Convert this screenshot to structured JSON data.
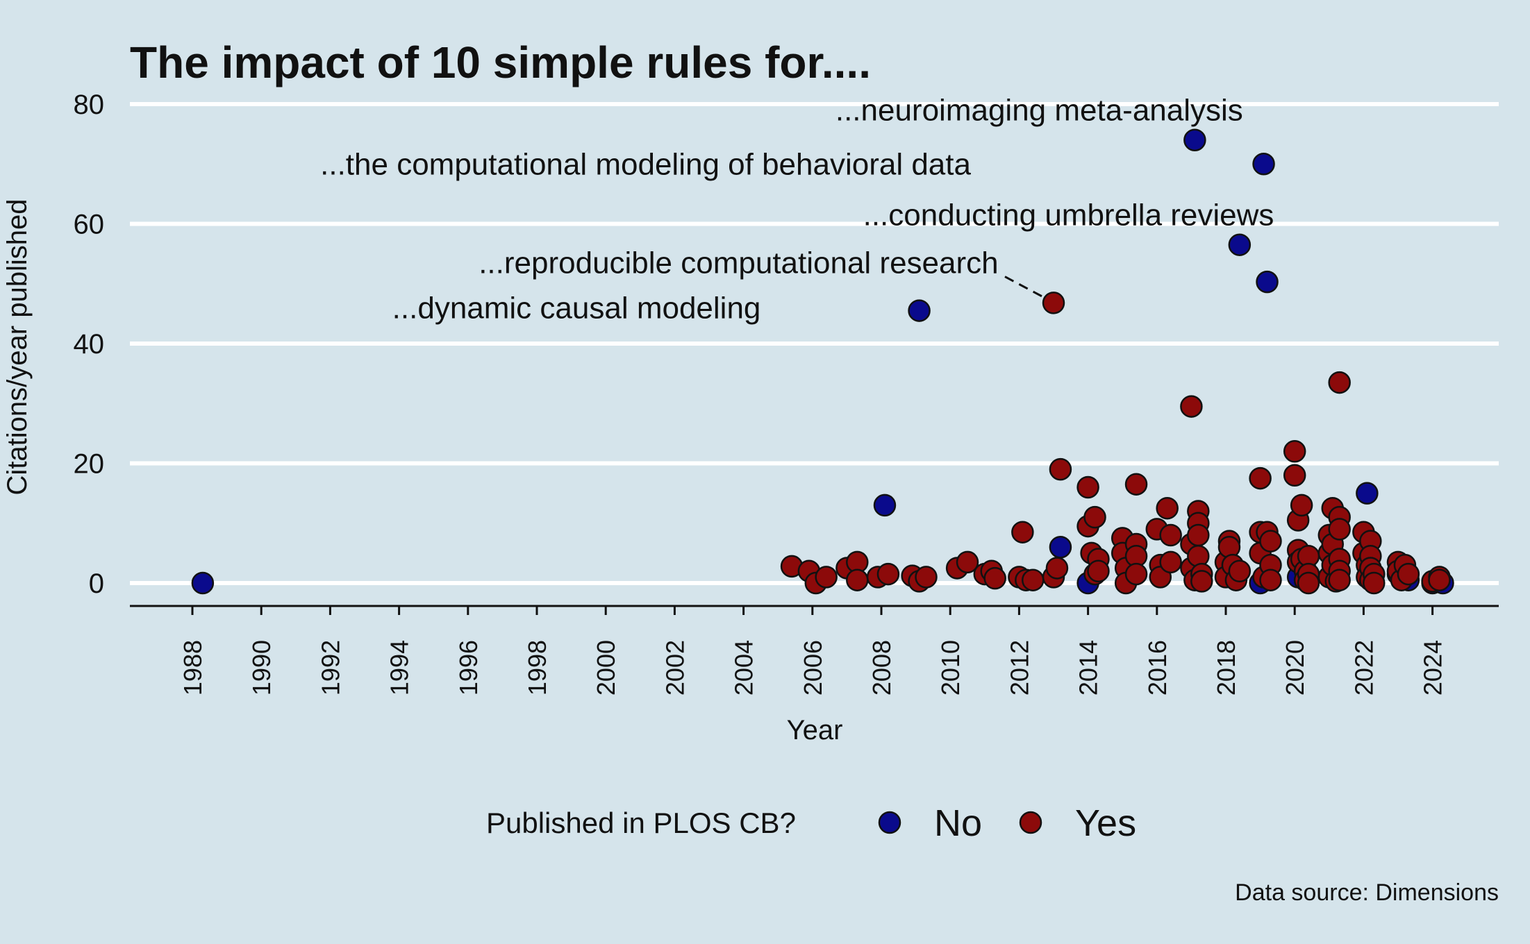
{
  "chart_data": {
    "type": "scatter",
    "title": "The impact of 10 simple rules for....",
    "xlabel": "Year",
    "ylabel": "Citations/year published",
    "caption": "Data source: Dimensions",
    "xlim": [
      1987,
      2026
    ],
    "ylim": [
      -4,
      82
    ],
    "x_ticks": [
      "1988",
      "1990",
      "1992",
      "1994",
      "1996",
      "1998",
      "2000",
      "2002",
      "2004",
      "2006",
      "2008",
      "2010",
      "2012",
      "2014",
      "2016",
      "2018",
      "2020",
      "2022",
      "2024"
    ],
    "y_ticks": [
      "0",
      "20",
      "40",
      "60",
      "80"
    ],
    "grid": "horizontal",
    "legend": {
      "title": "Published in PLOS CB?",
      "position": "bottom",
      "entries": [
        {
          "label": "No",
          "color": "#0a0a8c"
        },
        {
          "label": "Yes",
          "color": "#8c0a0a"
        }
      ]
    },
    "series": [
      {
        "name": "No",
        "color": "#0a0a8c",
        "points": [
          [
            1988.3,
            0
          ],
          [
            2008.1,
            13
          ],
          [
            2009.1,
            45.5
          ],
          [
            2013.2,
            6
          ],
          [
            2014.0,
            0
          ],
          [
            2017.1,
            74
          ],
          [
            2018.4,
            56.5
          ],
          [
            2019.1,
            70
          ],
          [
            2019.2,
            50.3
          ],
          [
            2019.0,
            0
          ],
          [
            2020.1,
            1
          ],
          [
            2020.3,
            2.5
          ],
          [
            2022.1,
            15
          ],
          [
            2023.0,
            1.5
          ],
          [
            2023.3,
            0.5
          ],
          [
            2024.0,
            0
          ],
          [
            2024.3,
            0
          ]
        ]
      },
      {
        "name": "Yes",
        "color": "#8c0a0a",
        "points": [
          [
            2005.4,
            2.8
          ],
          [
            2005.9,
            2
          ],
          [
            2006.1,
            0
          ],
          [
            2006.4,
            1
          ],
          [
            2007.0,
            2.5
          ],
          [
            2007.3,
            3.5
          ],
          [
            2007.3,
            0.5
          ],
          [
            2007.9,
            1
          ],
          [
            2008.2,
            1.5
          ],
          [
            2008.9,
            1.2
          ],
          [
            2009.1,
            0.3
          ],
          [
            2009.3,
            1
          ],
          [
            2010.2,
            2.5
          ],
          [
            2010.5,
            3.5
          ],
          [
            2011.0,
            1.5
          ],
          [
            2011.2,
            2
          ],
          [
            2011.3,
            0.8
          ],
          [
            2012.0,
            1
          ],
          [
            2012.1,
            8.5
          ],
          [
            2012.2,
            0.5
          ],
          [
            2012.4,
            0.5
          ],
          [
            2013.0,
            46.8
          ],
          [
            2013.0,
            1
          ],
          [
            2013.1,
            2.5
          ],
          [
            2013.2,
            19
          ],
          [
            2014.0,
            16
          ],
          [
            2014.0,
            9.5
          ],
          [
            2014.1,
            5
          ],
          [
            2014.2,
            11
          ],
          [
            2014.2,
            1.5
          ],
          [
            2014.3,
            4
          ],
          [
            2014.3,
            2
          ],
          [
            2015.0,
            7.5
          ],
          [
            2015.0,
            5
          ],
          [
            2015.1,
            2.5
          ],
          [
            2015.1,
            0
          ],
          [
            2015.4,
            16.5
          ],
          [
            2015.4,
            6.5
          ],
          [
            2015.4,
            4.5
          ],
          [
            2015.4,
            1.5
          ],
          [
            2016.0,
            9
          ],
          [
            2016.1,
            3
          ],
          [
            2016.1,
            1
          ],
          [
            2016.3,
            12.5
          ],
          [
            2016.4,
            8
          ],
          [
            2016.4,
            3.5
          ],
          [
            2017.0,
            29.5
          ],
          [
            2017.0,
            6.5
          ],
          [
            2017.0,
            2.5
          ],
          [
            2017.1,
            0.5
          ],
          [
            2017.2,
            12
          ],
          [
            2017.2,
            10
          ],
          [
            2017.2,
            8
          ],
          [
            2017.2,
            4.5
          ],
          [
            2017.3,
            1.5
          ],
          [
            2017.3,
            0.3
          ],
          [
            2018.0,
            3.5
          ],
          [
            2018.0,
            1
          ],
          [
            2018.1,
            7
          ],
          [
            2018.1,
            6
          ],
          [
            2018.2,
            3
          ],
          [
            2018.3,
            0.5
          ],
          [
            2018.4,
            2
          ],
          [
            2019.0,
            17.5
          ],
          [
            2019.0,
            8.5
          ],
          [
            2019.0,
            5
          ],
          [
            2019.1,
            1
          ],
          [
            2019.2,
            8.5
          ],
          [
            2019.3,
            7
          ],
          [
            2019.3,
            3
          ],
          [
            2019.3,
            0.5
          ],
          [
            2020.0,
            22
          ],
          [
            2020.0,
            18
          ],
          [
            2020.1,
            10.5
          ],
          [
            2020.1,
            5.5
          ],
          [
            2020.1,
            3.5
          ],
          [
            2020.2,
            13
          ],
          [
            2020.2,
            4
          ],
          [
            2020.3,
            2
          ],
          [
            2020.3,
            0.5
          ],
          [
            2020.4,
            4.5
          ],
          [
            2020.4,
            1.5
          ],
          [
            2020.4,
            0
          ],
          [
            2021.0,
            8
          ],
          [
            2021.0,
            5
          ],
          [
            2021.0,
            1
          ],
          [
            2021.1,
            12.5
          ],
          [
            2021.1,
            6.5
          ],
          [
            2021.1,
            3
          ],
          [
            2021.2,
            0.3
          ],
          [
            2021.3,
            33.5
          ],
          [
            2021.3,
            11
          ],
          [
            2021.3,
            9
          ],
          [
            2021.3,
            4
          ],
          [
            2021.3,
            2
          ],
          [
            2021.3,
            0.5
          ],
          [
            2022.0,
            8.5
          ],
          [
            2022.0,
            5
          ],
          [
            2022.1,
            3
          ],
          [
            2022.1,
            1
          ],
          [
            2022.2,
            7
          ],
          [
            2022.2,
            4.5
          ],
          [
            2022.2,
            2.5
          ],
          [
            2022.2,
            0.5
          ],
          [
            2022.3,
            1.5
          ],
          [
            2022.3,
            0
          ],
          [
            2023.0,
            3.5
          ],
          [
            2023.0,
            2
          ],
          [
            2023.1,
            0.5
          ],
          [
            2023.2,
            3
          ],
          [
            2023.3,
            1.5
          ],
          [
            2024.0,
            0.3
          ],
          [
            2024.2,
            1
          ],
          [
            2024.2,
            0.5
          ]
        ]
      }
    ],
    "annotations": [
      {
        "text": "...neuroimaging meta-analysis",
        "x": 2017.1,
        "y": 74,
        "label_x": 2018.5,
        "label_y": 79
      },
      {
        "text": "...the computational modeling of behavioral data",
        "x": 2019.1,
        "y": 70,
        "label_x": 2010.6,
        "label_y": 70
      },
      {
        "text": "...conducting umbrella reviews",
        "x": 2018.4,
        "y": 56.5,
        "label_x": 2019.4,
        "label_y": 61.5
      },
      {
        "text": "...reproducible computational research",
        "x": 2013.0,
        "y": 46.8,
        "label_x": 2011.4,
        "label_y": 53.5,
        "leader": true
      },
      {
        "text": "...dynamic causal modeling",
        "x": 2009.1,
        "y": 45.5,
        "label_x": 2004.5,
        "label_y": 46
      }
    ]
  }
}
